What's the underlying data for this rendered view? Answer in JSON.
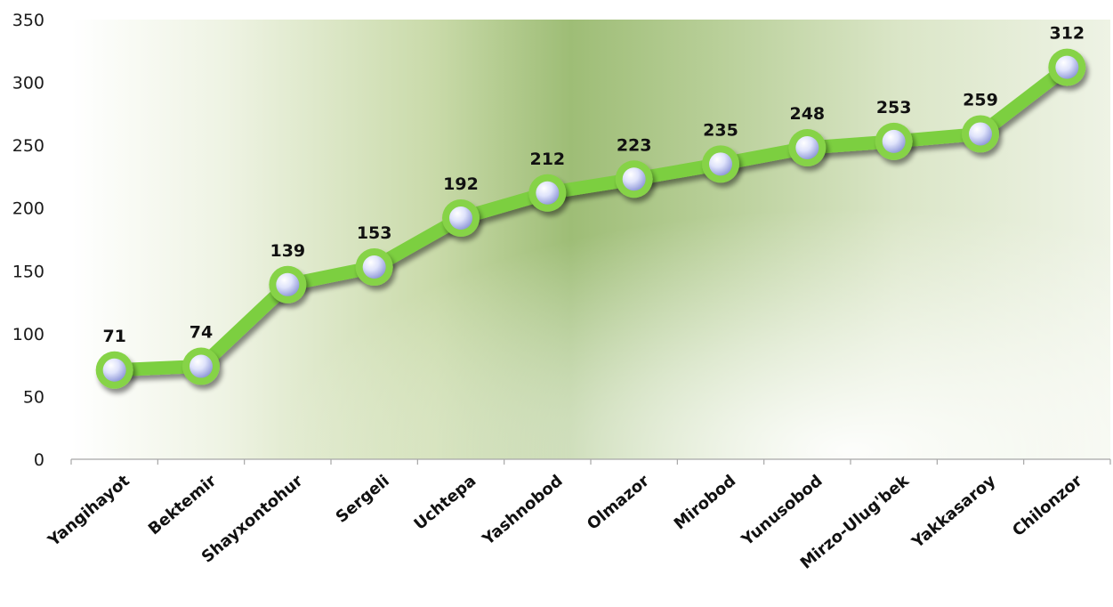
{
  "chart_data": {
    "type": "line",
    "title": "",
    "xlabel": "",
    "ylabel": "",
    "categories": [
      "Yangihayot",
      "Bektemir",
      "Shayxontohur",
      "Sergeli",
      "Uchtepa",
      "Yashnobod",
      "Olmazor",
      "Mirobod",
      "Yunusobod",
      "Mirzo-Ulug'bek",
      "Yakkasaroy",
      "Chilonzor"
    ],
    "series": [
      {
        "values": [
          71,
          74,
          139,
          153,
          192,
          212,
          223,
          235,
          248,
          253,
          259,
          312
        ]
      }
    ],
    "ylim": [
      0,
      350
    ],
    "yticks": [
      0,
      50,
      100,
      150,
      200,
      250,
      300,
      350
    ],
    "grid": false,
    "legend": "none",
    "data_labels": true
  },
  "colors": {
    "line": "#7ccf3f",
    "line_border": "#68b52f",
    "marker_fill_center": "#f4f6ff",
    "marker_fill_edge": "#9aa3e0",
    "marker_ring": "#86d346",
    "plot_bg_light": "#ffffff",
    "plot_bg_dark": "#93b86e",
    "axis": "#a6a6a6"
  }
}
